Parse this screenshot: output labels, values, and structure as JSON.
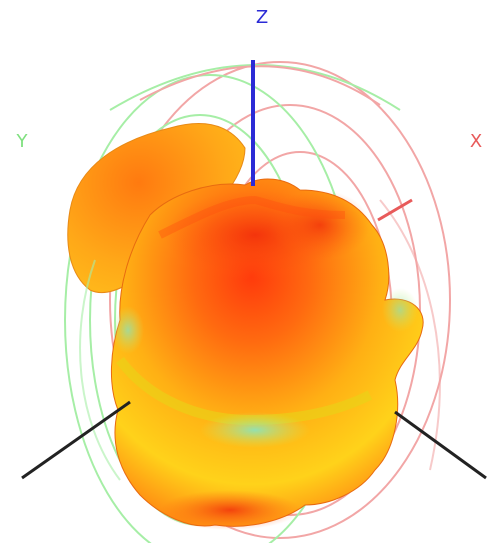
{
  "axes": {
    "z": {
      "label": "Z",
      "color": "#2b2bd6"
    },
    "y": {
      "label": "Y",
      "color": "#7fe07f"
    },
    "x": {
      "label": "X",
      "color": "#e85a5a"
    }
  },
  "colors": {
    "ring_red": "#f2a6a6",
    "ring_green": "#a6eea6",
    "axis_dark": "#222222",
    "pattern_hot": "#f02a0a",
    "pattern_orange": "#ff8a12",
    "pattern_yellow": "#ffd418",
    "pattern_cyan": "#7fe8c8"
  }
}
